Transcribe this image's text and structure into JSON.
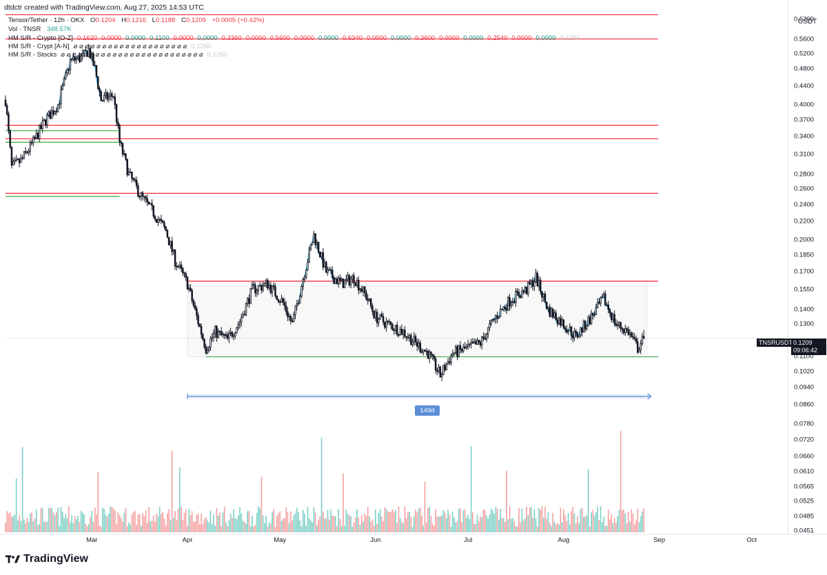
{
  "header": "dtdctr created with TradingView.com, Aug 27, 2025 14:53 UTC",
  "symbol_line": {
    "title": "Tensor/Tether · 12h · OKX",
    "o_label": "O",
    "o": "0.1204",
    "h_label": "H",
    "h": "0.1216",
    "l_label": "L",
    "l": "0.1188",
    "c_label": "C",
    "c": "0.1209",
    "change": "+0.0005 (+0.42%)"
  },
  "volume_line": {
    "label": "Vol · TNSR",
    "value": "348.57K"
  },
  "indicators": [
    {
      "name": "HM S/R - Crypto [O-Z]",
      "values": [
        {
          "v": "0.1620",
          "c": "red"
        },
        {
          "v": "0.0000",
          "c": "red"
        },
        {
          "v": "0.0000",
          "c": "green"
        },
        {
          "v": "0.1100",
          "c": "green"
        },
        {
          "v": "0.0000",
          "c": "red"
        },
        {
          "v": "0.0000",
          "c": "green"
        },
        {
          "v": "0.3360",
          "c": "red"
        },
        {
          "v": "0.0000",
          "c": "red"
        },
        {
          "v": "0.5600",
          "c": "red"
        },
        {
          "v": "0.0000",
          "c": "red"
        },
        {
          "v": "0.0000",
          "c": "green"
        },
        {
          "v": "0.6340",
          "c": "red"
        },
        {
          "v": "0.0000",
          "c": "red"
        },
        {
          "v": "0.0000",
          "c": "green"
        },
        {
          "v": "0.3600",
          "c": "red"
        },
        {
          "v": "0.0000",
          "c": "red"
        },
        {
          "v": "0.0000",
          "c": "green"
        },
        {
          "v": "0.2540",
          "c": "red"
        },
        {
          "v": "0.0000",
          "c": "red"
        },
        {
          "v": "0.0000",
          "c": "green"
        },
        {
          "v": "0.1260",
          "c": "grey"
        }
      ]
    },
    {
      "name": "HM S/R - Crypt [A-N]",
      "values": "⌀ ⌀ ⌀ ⌀ ⌀ ⌀ ⌀ ⌀ ⌀ ⌀ ⌀ ⌀ ⌀ ⌀ ⌀ ⌀ ⌀ ⌀ ⌀ ⌀",
      "tail": "0.1260"
    },
    {
      "name": "HM S/R - Stocks",
      "values": "⌀ ⌀ ⌀ ⌀ ⌀ ⌀ ⌀ ⌀ ⌀ ⌀ ⌀ ⌀ ⌀ ⌀ ⌀ ⌀ ⌀ ⌀ ⌀ ⌀ ⌀ ⌀ ⌀ ⌀ ⌀",
      "tail": "0.1260"
    }
  ],
  "price_axis": {
    "unit": "USDT",
    "ticks": [
      "0.6200",
      "0.5600",
      "0.5200",
      "0.4800",
      "0.4400",
      "0.4000",
      "0.3700",
      "0.3400",
      "0.3100",
      "0.2800",
      "0.2600",
      "0.2400",
      "0.2200",
      "0.2000",
      "0.1850",
      "0.1700",
      "0.1550",
      "0.1400",
      "0.1300",
      "0.1100",
      "0.1020",
      "0.0940",
      "0.0860",
      "0.0780",
      "0.0720",
      "0.0660",
      "0.0610",
      "0.0565",
      "0.0525",
      "0.0485",
      "0.0451"
    ]
  },
  "time_axis": {
    "ticks": [
      "Mar",
      "Apr",
      "May",
      "Jun",
      "Jul",
      "Aug",
      "Sep",
      "Oct"
    ]
  },
  "last_price": {
    "symbol": "TNSRUSDT",
    "price": "0.1209",
    "countdown": "09:06:42"
  },
  "range_tool": {
    "label": "149d"
  },
  "brand": "TradingView",
  "colors": {
    "up": "#ffffff",
    "down": "#131722",
    "resistance": "#f23645",
    "support": "#4caf50",
    "ma": "#29a9e0",
    "ma_slow": "#d9d9d9",
    "vol_up": "#7fd1c7",
    "vol_down": "#f5a3a3",
    "range": "#5b8ed6"
  },
  "chart_data": {
    "type": "candlestick",
    "pair": "Tensor/Tether",
    "interval": "12h",
    "exchange": "OKX",
    "scale": "log",
    "x_range": [
      "2025-02-01",
      "2025-10-12"
    ],
    "y_range": [
      0.0451,
      0.66
    ],
    "anchors": [
      {
        "date": "2025-02-01",
        "close": 0.41
      },
      {
        "date": "2025-02-03",
        "close": 0.29
      },
      {
        "date": "2025-02-06",
        "close": 0.3
      },
      {
        "date": "2025-02-10",
        "close": 0.33
      },
      {
        "date": "2025-02-14",
        "close": 0.37
      },
      {
        "date": "2025-02-18",
        "close": 0.4
      },
      {
        "date": "2025-02-22",
        "close": 0.5
      },
      {
        "date": "2025-02-26",
        "close": 0.51
      },
      {
        "date": "2025-02-28",
        "close": 0.53
      },
      {
        "date": "2025-03-02",
        "close": 0.48
      },
      {
        "date": "2025-03-04",
        "close": 0.41
      },
      {
        "date": "2025-03-08",
        "close": 0.42
      },
      {
        "date": "2025-03-10",
        "close": 0.33
      },
      {
        "date": "2025-03-13",
        "close": 0.28
      },
      {
        "date": "2025-03-17",
        "close": 0.25
      },
      {
        "date": "2025-03-21",
        "close": 0.23
      },
      {
        "date": "2025-03-25",
        "close": 0.21
      },
      {
        "date": "2025-03-28",
        "close": 0.18
      },
      {
        "date": "2025-04-01",
        "close": 0.16
      },
      {
        "date": "2025-04-04",
        "close": 0.135
      },
      {
        "date": "2025-04-07",
        "close": 0.115
      },
      {
        "date": "2025-04-10",
        "close": 0.125
      },
      {
        "date": "2025-04-14",
        "close": 0.12
      },
      {
        "date": "2025-04-18",
        "close": 0.132
      },
      {
        "date": "2025-04-22",
        "close": 0.155
      },
      {
        "date": "2025-04-27",
        "close": 0.16
      },
      {
        "date": "2025-05-02",
        "close": 0.145
      },
      {
        "date": "2025-05-05",
        "close": 0.13
      },
      {
        "date": "2025-05-09",
        "close": 0.17
      },
      {
        "date": "2025-05-12",
        "close": 0.205
      },
      {
        "date": "2025-05-16",
        "close": 0.17
      },
      {
        "date": "2025-05-21",
        "close": 0.16
      },
      {
        "date": "2025-05-25",
        "close": 0.165
      },
      {
        "date": "2025-05-29",
        "close": 0.15
      },
      {
        "date": "2025-06-01",
        "close": 0.135
      },
      {
        "date": "2025-06-05",
        "close": 0.13
      },
      {
        "date": "2025-06-10",
        "close": 0.125
      },
      {
        "date": "2025-06-14",
        "close": 0.118
      },
      {
        "date": "2025-06-18",
        "close": 0.112
      },
      {
        "date": "2025-06-22",
        "close": 0.1
      },
      {
        "date": "2025-06-26",
        "close": 0.112
      },
      {
        "date": "2025-07-01",
        "close": 0.115
      },
      {
        "date": "2025-07-05",
        "close": 0.118
      },
      {
        "date": "2025-07-10",
        "close": 0.135
      },
      {
        "date": "2025-07-15",
        "close": 0.148
      },
      {
        "date": "2025-07-20",
        "close": 0.155
      },
      {
        "date": "2025-07-23",
        "close": 0.165
      },
      {
        "date": "2025-07-27",
        "close": 0.14
      },
      {
        "date": "2025-08-01",
        "close": 0.13
      },
      {
        "date": "2025-08-05",
        "close": 0.122
      },
      {
        "date": "2025-08-10",
        "close": 0.135
      },
      {
        "date": "2025-08-14",
        "close": 0.148
      },
      {
        "date": "2025-08-18",
        "close": 0.13
      },
      {
        "date": "2025-08-22",
        "close": 0.125
      },
      {
        "date": "2025-08-25",
        "close": 0.115
      },
      {
        "date": "2025-08-27",
        "close": 0.1209
      }
    ],
    "levels": [
      {
        "price": 0.634,
        "type": "resistance"
      },
      {
        "price": 0.56,
        "type": "resistance"
      },
      {
        "price": 0.36,
        "type": "resistance"
      },
      {
        "price": 0.336,
        "type": "resistance"
      },
      {
        "price": 0.254,
        "type": "resistance"
      },
      {
        "price": 0.162,
        "type": "resistance"
      },
      {
        "price": 0.35,
        "type": "support"
      },
      {
        "price": 0.33,
        "type": "support"
      },
      {
        "price": 0.25,
        "type": "support"
      },
      {
        "price": 0.11,
        "type": "support"
      }
    ],
    "range_box": {
      "x0": "2025-04-01",
      "x1": "2025-08-28",
      "y0": 0.11,
      "y1": 0.162,
      "days": 149
    }
  }
}
